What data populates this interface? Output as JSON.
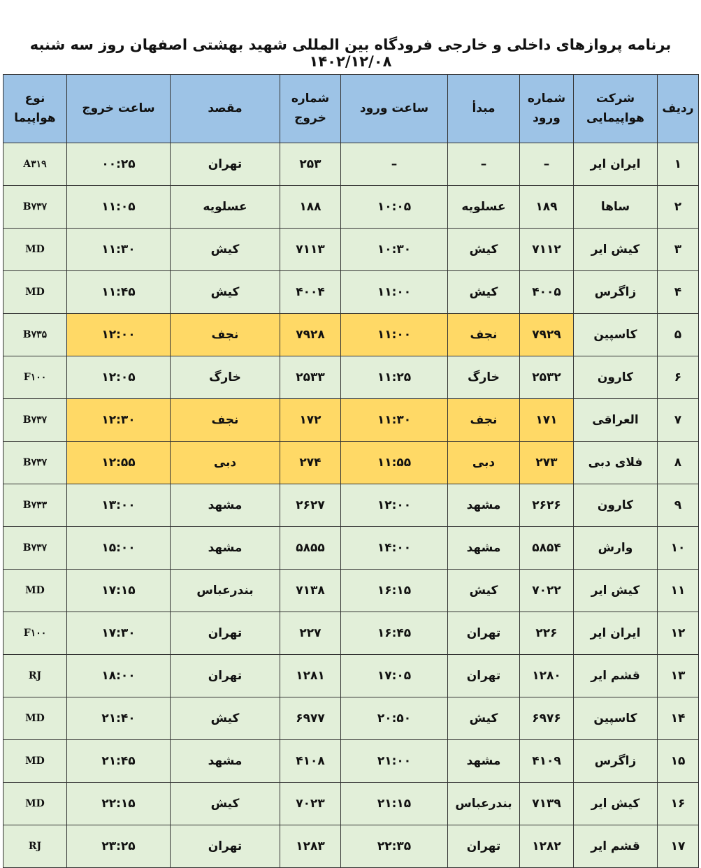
{
  "title": "برنامه پروازهای داخلی و خارجی فرودگاه بین المللی شهید بهشتی اصفهان روز  سه شنبه  ۱۴۰۲/۱۲/۰۸",
  "columns": [
    "ردیف",
    "شرکت هواپیمایی",
    "شماره ورود",
    "مبدأ",
    "ساعت ورود",
    "شماره خروج",
    "مقصد",
    "ساعت خروج",
    "نوع هواپیما"
  ],
  "highlight_color": "#ffd966",
  "rows": [
    {
      "n": "۱",
      "airline": "ایران ایر",
      "arr_no": "–",
      "origin": "–",
      "arr_time": "–",
      "dep_no": "۲۵۳",
      "dest": "تهران",
      "dep_time": "۰۰:۲۵",
      "aircraft": "A۳۱۹",
      "highlight": false
    },
    {
      "n": "۲",
      "airline": "ساها",
      "arr_no": "۱۸۹",
      "origin": "عسلویه",
      "arr_time": "۱۰:۰۵",
      "dep_no": "۱۸۸",
      "dest": "عسلویه",
      "dep_time": "۱۱:۰۵",
      "aircraft": "B۷۳۷",
      "highlight": false
    },
    {
      "n": "۳",
      "airline": "کیش ایر",
      "arr_no": "۷۱۱۲",
      "origin": "کیش",
      "arr_time": "۱۰:۳۰",
      "dep_no": "۷۱۱۳",
      "dest": "کیش",
      "dep_time": "۱۱:۳۰",
      "aircraft": "MD",
      "highlight": false
    },
    {
      "n": "۴",
      "airline": "زاگرس",
      "arr_no": "۴۰۰۵",
      "origin": "کیش",
      "arr_time": "۱۱:۰۰",
      "dep_no": "۴۰۰۴",
      "dest": "کیش",
      "dep_time": "۱۱:۴۵",
      "aircraft": "MD",
      "highlight": false
    },
    {
      "n": "۵",
      "airline": "کاسپین",
      "arr_no": "۷۹۲۹",
      "origin": "نجف",
      "arr_time": "۱۱:۰۰",
      "dep_no": "۷۹۲۸",
      "dest": "نجف",
      "dep_time": "۱۲:۰۰",
      "aircraft": "B۷۳۵",
      "highlight": true
    },
    {
      "n": "۶",
      "airline": "کارون",
      "arr_no": "۲۵۳۲",
      "origin": "خارگ",
      "arr_time": "۱۱:۲۵",
      "dep_no": "۲۵۳۳",
      "dest": "خارگ",
      "dep_time": "۱۲:۰۵",
      "aircraft": "F۱۰۰",
      "highlight": false
    },
    {
      "n": "۷",
      "airline": "العراقی",
      "arr_no": "۱۷۱",
      "origin": "نجف",
      "arr_time": "۱۱:۳۰",
      "dep_no": "۱۷۲",
      "dest": "نجف",
      "dep_time": "۱۲:۳۰",
      "aircraft": "B۷۳۷",
      "highlight": true
    },
    {
      "n": "۸",
      "airline": "فلای دبی",
      "arr_no": "۲۷۳",
      "origin": "دبی",
      "arr_time": "۱۱:۵۵",
      "dep_no": "۲۷۴",
      "dest": "دبی",
      "dep_time": "۱۲:۵۵",
      "aircraft": "B۷۳۷",
      "highlight": true
    },
    {
      "n": "۹",
      "airline": "کارون",
      "arr_no": "۲۶۲۶",
      "origin": "مشهد",
      "arr_time": "۱۲:۰۰",
      "dep_no": "۲۶۲۷",
      "dest": "مشهد",
      "dep_time": "۱۳:۰۰",
      "aircraft": "B۷۳۳",
      "highlight": false
    },
    {
      "n": "۱۰",
      "airline": "وارش",
      "arr_no": "۵۸۵۴",
      "origin": "مشهد",
      "arr_time": "۱۴:۰۰",
      "dep_no": "۵۸۵۵",
      "dest": "مشهد",
      "dep_time": "۱۵:۰۰",
      "aircraft": "B۷۳۷",
      "highlight": false
    },
    {
      "n": "۱۱",
      "airline": "کیش ایر",
      "arr_no": "۷۰۲۲",
      "origin": "کیش",
      "arr_time": "۱۶:۱۵",
      "dep_no": "۷۱۳۸",
      "dest": "بندرعباس",
      "dep_time": "۱۷:۱۵",
      "aircraft": "MD",
      "highlight": false
    },
    {
      "n": "۱۲",
      "airline": "ایران ایر",
      "arr_no": "۲۲۶",
      "origin": "تهران",
      "arr_time": "۱۶:۴۵",
      "dep_no": "۲۲۷",
      "dest": "تهران",
      "dep_time": "۱۷:۳۰",
      "aircraft": "F۱۰۰",
      "highlight": false
    },
    {
      "n": "۱۳",
      "airline": "قشم ایر",
      "arr_no": "۱۲۸۰",
      "origin": "تهران",
      "arr_time": "۱۷:۰۵",
      "dep_no": "۱۲۸۱",
      "dest": "تهران",
      "dep_time": "۱۸:۰۰",
      "aircraft": "RJ",
      "highlight": false
    },
    {
      "n": "۱۴",
      "airline": "کاسپین",
      "arr_no": "۶۹۷۶",
      "origin": "کیش",
      "arr_time": "۲۰:۵۰",
      "dep_no": "۶۹۷۷",
      "dest": "کیش",
      "dep_time": "۲۱:۴۰",
      "aircraft": "MD",
      "highlight": false
    },
    {
      "n": "۱۵",
      "airline": "زاگرس",
      "arr_no": "۴۱۰۹",
      "origin": "مشهد",
      "arr_time": "۲۱:۰۰",
      "dep_no": "۴۱۰۸",
      "dest": "مشهد",
      "dep_time": "۲۱:۴۵",
      "aircraft": "MD",
      "highlight": false
    },
    {
      "n": "۱۶",
      "airline": "کیش ایر",
      "arr_no": "۷۱۳۹",
      "origin": "بندرعباس",
      "arr_time": "۲۱:۱۵",
      "dep_no": "۷۰۲۳",
      "dest": "کیش",
      "dep_time": "۲۲:۱۵",
      "aircraft": "MD",
      "highlight": false
    },
    {
      "n": "۱۷",
      "airline": "قشم ایر",
      "arr_no": "۱۲۸۲",
      "origin": "تهران",
      "arr_time": "۲۲:۳۵",
      "dep_no": "۱۲۸۳",
      "dest": "تهران",
      "dep_time": "۲۳:۲۵",
      "aircraft": "RJ",
      "highlight": false
    }
  ]
}
